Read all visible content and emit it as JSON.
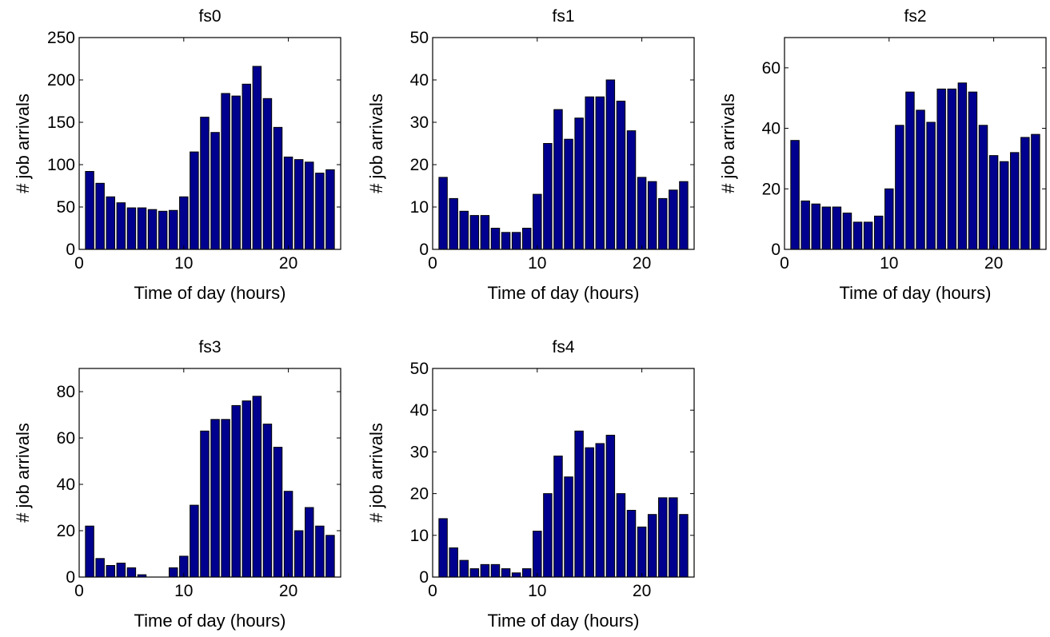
{
  "chart_data": [
    {
      "type": "bar",
      "title": "fs0",
      "xlabel": "Time of day (hours)",
      "ylabel": "# job arrivals",
      "x": [
        1,
        2,
        3,
        4,
        5,
        6,
        7,
        8,
        9,
        10,
        11,
        12,
        13,
        14,
        15,
        16,
        17,
        18,
        19,
        20,
        21,
        22,
        23,
        24
      ],
      "values": [
        92,
        78,
        62,
        55,
        49,
        49,
        47,
        45,
        46,
        62,
        115,
        156,
        138,
        184,
        181,
        195,
        216,
        178,
        144,
        109,
        106,
        103,
        90,
        94
      ],
      "xlim": [
        0,
        25
      ],
      "ylim": [
        0,
        250
      ],
      "xticks": [
        0,
        10,
        20
      ],
      "yticks": [
        0,
        50,
        100,
        150,
        200,
        250
      ],
      "bar_color": "#00008f",
      "grid": false
    },
    {
      "type": "bar",
      "title": "fs1",
      "xlabel": "Time of day (hours)",
      "ylabel": "# job arrivals",
      "x": [
        1,
        2,
        3,
        4,
        5,
        6,
        7,
        8,
        9,
        10,
        11,
        12,
        13,
        14,
        15,
        16,
        17,
        18,
        19,
        20,
        21,
        22,
        23,
        24
      ],
      "values": [
        17,
        12,
        9,
        8,
        8,
        5,
        4,
        4,
        5,
        13,
        25,
        33,
        26,
        31,
        36,
        36,
        40,
        35,
        28,
        17,
        16,
        12,
        14,
        16
      ],
      "xlim": [
        0,
        25
      ],
      "ylim": [
        0,
        50
      ],
      "xticks": [
        0,
        10,
        20
      ],
      "yticks": [
        0,
        10,
        20,
        30,
        40,
        50
      ],
      "bar_color": "#00008f",
      "grid": false
    },
    {
      "type": "bar",
      "title": "fs2",
      "xlabel": "Time of day (hours)",
      "ylabel": "# job arrivals",
      "x": [
        1,
        2,
        3,
        4,
        5,
        6,
        7,
        8,
        9,
        10,
        11,
        12,
        13,
        14,
        15,
        16,
        17,
        18,
        19,
        20,
        21,
        22,
        23,
        24
      ],
      "values": [
        36,
        16,
        15,
        14,
        14,
        12,
        9,
        9,
        11,
        20,
        41,
        52,
        46,
        42,
        53,
        53,
        55,
        52,
        41,
        31,
        29,
        32,
        37,
        38
      ],
      "xlim": [
        0,
        25
      ],
      "ylim": [
        0,
        70
      ],
      "xticks": [
        0,
        10,
        20
      ],
      "yticks": [
        0,
        20,
        40,
        60
      ],
      "bar_color": "#00008f",
      "grid": false
    },
    {
      "type": "bar",
      "title": "fs3",
      "xlabel": "Time of day (hours)",
      "ylabel": "# job arrivals",
      "x": [
        1,
        2,
        3,
        4,
        5,
        6,
        7,
        8,
        9,
        10,
        11,
        12,
        13,
        14,
        15,
        16,
        17,
        18,
        19,
        20,
        21,
        22,
        23,
        24
      ],
      "values": [
        22,
        8,
        5,
        6,
        4,
        1,
        0,
        0,
        4,
        9,
        31,
        63,
        68,
        68,
        74,
        76,
        78,
        66,
        56,
        37,
        20,
        30,
        22,
        18
      ],
      "xlim": [
        0,
        25
      ],
      "ylim": [
        0,
        90
      ],
      "xticks": [
        0,
        10,
        20
      ],
      "yticks": [
        0,
        20,
        40,
        60,
        80
      ],
      "bar_color": "#00008f",
      "grid": false
    },
    {
      "type": "bar",
      "title": "fs4",
      "xlabel": "Time of day (hours)",
      "ylabel": "# job arrivals",
      "x": [
        1,
        2,
        3,
        4,
        5,
        6,
        7,
        8,
        9,
        10,
        11,
        12,
        13,
        14,
        15,
        16,
        17,
        18,
        19,
        20,
        21,
        22,
        23,
        24
      ],
      "values": [
        14,
        7,
        4,
        2,
        3,
        3,
        2,
        1,
        2,
        11,
        20,
        29,
        24,
        35,
        31,
        32,
        34,
        20,
        16,
        12,
        15,
        19,
        19,
        15
      ],
      "xlim": [
        0,
        25
      ],
      "ylim": [
        0,
        50
      ],
      "xticks": [
        0,
        10,
        20
      ],
      "yticks": [
        0,
        10,
        20,
        30,
        40,
        50
      ],
      "bar_color": "#00008f",
      "grid": false
    }
  ]
}
